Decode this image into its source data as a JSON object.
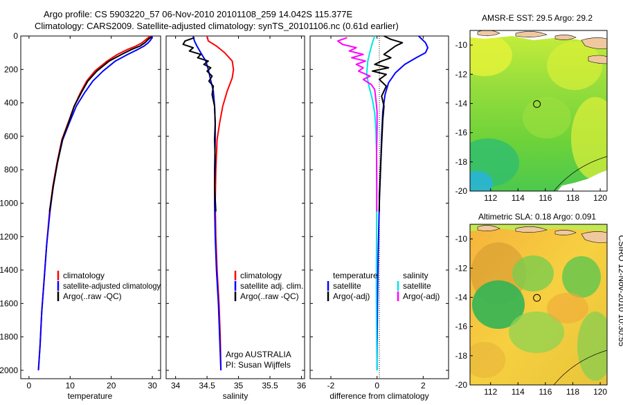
{
  "header": {
    "line1": "Argo profile: CS 5903220_57 06-Nov-2010 20101108_259 14.042S 115.377E",
    "line2": "Climatology: CARS2009. Satellite-adjusted climatology: synTS_20101106.nc (0.61d earlier)"
  },
  "side_text": "CSIRO 12-Nov-2010 10:30:55",
  "colors": {
    "red": "#ff0000",
    "blue": "#0000ff",
    "black": "#000000",
    "cyan": "#00e5e5",
    "magenta": "#ff00ff"
  },
  "chart_data": [
    {
      "type": "line",
      "title": "",
      "xlabel": "temperature",
      "ylabel": "",
      "xlim": [
        -2,
        32
      ],
      "ylim": [
        0,
        2050
      ],
      "y_inverted": true,
      "xticks": [
        0,
        10,
        20,
        30
      ],
      "yticks": [
        0,
        200,
        400,
        600,
        800,
        1000,
        1200,
        1400,
        1600,
        1800,
        2000
      ],
      "legend": [
        "climatology",
        "satellite-adjusted climatology",
        "Argo(..raw -QC)"
      ],
      "legend_position": "bottom-right",
      "series": [
        {
          "name": "climatology",
          "color": "#ff0000",
          "points": [
            [
              29.5,
              0
            ],
            [
              28.5,
              20
            ],
            [
              27.5,
              40
            ],
            [
              26,
              60
            ],
            [
              24,
              80
            ],
            [
              21.5,
              110
            ],
            [
              19,
              150
            ],
            [
              16,
              210
            ],
            [
              14,
              270
            ],
            [
              12.5,
              340
            ],
            [
              11,
              420
            ],
            [
              9.5,
              520
            ],
            [
              8,
              620
            ],
            [
              6.8,
              760
            ],
            [
              5.8,
              900
            ],
            [
              5,
              1050
            ],
            [
              4.3,
              1250
            ],
            [
              3.7,
              1450
            ],
            [
              3.1,
              1650
            ],
            [
              2.7,
              1850
            ],
            [
              2.3,
              2000
            ]
          ]
        },
        {
          "name": "satellite-adjusted climatology",
          "color": "#0000ff",
          "points": [
            [
              30,
              0
            ],
            [
              29.7,
              20
            ],
            [
              29,
              40
            ],
            [
              28,
              60
            ],
            [
              26.5,
              80
            ],
            [
              24,
              110
            ],
            [
              21,
              150
            ],
            [
              18,
              210
            ],
            [
              15.5,
              270
            ],
            [
              13.5,
              340
            ],
            [
              11.5,
              420
            ],
            [
              9.8,
              520
            ],
            [
              8.2,
              620
            ],
            [
              6.9,
              760
            ],
            [
              5.9,
              900
            ],
            [
              5.1,
              1050
            ],
            [
              4.3,
              1250
            ],
            [
              3.7,
              1450
            ],
            [
              3.1,
              1650
            ],
            [
              2.7,
              1850
            ],
            [
              2.3,
              2000
            ]
          ]
        },
        {
          "name": "Argo(..raw -QC)",
          "color": "#000000",
          "points": [
            [
              29.8,
              5
            ],
            [
              29,
              20
            ],
            [
              28.2,
              40
            ],
            [
              27,
              60
            ],
            [
              25,
              80
            ],
            [
              22.5,
              110
            ],
            [
              19.5,
              150
            ],
            [
              16.5,
              210
            ],
            [
              14.3,
              270
            ],
            [
              12.7,
              340
            ],
            [
              11,
              420
            ],
            [
              9.6,
              520
            ],
            [
              8.1,
              620
            ],
            [
              6.9,
              760
            ],
            [
              5.9,
              900
            ],
            [
              5,
              1050
            ]
          ]
        }
      ]
    },
    {
      "type": "line",
      "title": "",
      "xlabel": "salinity",
      "ylabel": "",
      "xlim": [
        33.85,
        36.05
      ],
      "ylim": [
        0,
        2050
      ],
      "y_inverted": true,
      "xticks": [
        34,
        34.5,
        35,
        35.5,
        36
      ],
      "legend": [
        "climatology",
        "satellite adj. clim.",
        "Argo(..raw -QC)"
      ],
      "legend_position": "bottom-right",
      "annotations": [
        "Argo AUSTRALIA",
        "PI: Susan Wijffels"
      ],
      "series": [
        {
          "name": "climatology",
          "color": "#ff0000",
          "points": [
            [
              34.5,
              0
            ],
            [
              34.52,
              30
            ],
            [
              34.65,
              60
            ],
            [
              34.78,
              100
            ],
            [
              34.9,
              150
            ],
            [
              34.92,
              200
            ],
            [
              34.9,
              250
            ],
            [
              34.82,
              330
            ],
            [
              34.75,
              420
            ],
            [
              34.7,
              520
            ],
            [
              34.66,
              620
            ],
            [
              34.64,
              800
            ],
            [
              34.63,
              1000
            ],
            [
              34.64,
              1200
            ],
            [
              34.66,
              1400
            ],
            [
              34.69,
              1600
            ],
            [
              34.71,
              1800
            ],
            [
              34.72,
              2000
            ]
          ]
        },
        {
          "name": "satellite adj. clim.",
          "color": "#0000ff",
          "points": [
            [
              34.28,
              0
            ],
            [
              34.3,
              30
            ],
            [
              34.34,
              60
            ],
            [
              34.4,
              100
            ],
            [
              34.48,
              150
            ],
            [
              34.52,
              200
            ],
            [
              34.55,
              250
            ],
            [
              34.6,
              330
            ],
            [
              34.62,
              420
            ],
            [
              34.63,
              520
            ],
            [
              34.63,
              620
            ],
            [
              34.62,
              800
            ],
            [
              34.62,
              1000
            ],
            [
              34.63,
              1200
            ],
            [
              34.65,
              1400
            ],
            [
              34.68,
              1600
            ],
            [
              34.7,
              1800
            ],
            [
              34.72,
              2000
            ]
          ]
        },
        {
          "name": "Argo(..raw -QC)",
          "color": "#000000",
          "points": [
            [
              34.3,
              10
            ],
            [
              34.15,
              30
            ],
            [
              34.12,
              50
            ],
            [
              34.28,
              70
            ],
            [
              34.22,
              90
            ],
            [
              34.4,
              110
            ],
            [
              34.35,
              130
            ],
            [
              34.52,
              150
            ],
            [
              34.45,
              170
            ],
            [
              34.56,
              190
            ],
            [
              34.5,
              210
            ],
            [
              34.58,
              240
            ],
            [
              34.53,
              270
            ],
            [
              34.6,
              300
            ],
            [
              34.58,
              350
            ],
            [
              34.62,
              420
            ],
            [
              34.63,
              520
            ],
            [
              34.62,
              620
            ],
            [
              34.63,
              750
            ],
            [
              34.62,
              900
            ],
            [
              34.64,
              1050
            ]
          ]
        }
      ]
    },
    {
      "type": "line",
      "title": "",
      "xlabel": "difference from climatology",
      "ylabel": "",
      "xlim": [
        -2.9,
        3.1
      ],
      "ylim": [
        0,
        2050
      ],
      "y_inverted": true,
      "xticks": [
        -2,
        0,
        2
      ],
      "legend": [
        "temperature",
        "satellite",
        "Argo(-adj)",
        "salinity",
        "satellite",
        "Argo(-adj)"
      ],
      "legend_position": "bottom",
      "series": [
        {
          "name": "temperature satellite",
          "color": "#0000ff",
          "points": [
            [
              1.8,
              0
            ],
            [
              2.1,
              40
            ],
            [
              2.2,
              70
            ],
            [
              2.1,
              100
            ],
            [
              1.7,
              130
            ],
            [
              1.2,
              170
            ],
            [
              0.8,
              220
            ],
            [
              0.5,
              280
            ],
            [
              0.35,
              350
            ],
            [
              0.25,
              450
            ],
            [
              0.2,
              600
            ],
            [
              0.15,
              800
            ],
            [
              0.1,
              1000
            ],
            [
              0.05,
              1300
            ],
            [
              0.02,
              1600
            ],
            [
              0,
              1850
            ],
            [
              0,
              2000
            ]
          ]
        },
        {
          "name": "temperature Argo(-adj)",
          "color": "#000000",
          "points": [
            [
              0.3,
              0
            ],
            [
              0.6,
              20
            ],
            [
              1.1,
              40
            ],
            [
              0.8,
              60
            ],
            [
              0.6,
              80
            ],
            [
              0.3,
              110
            ],
            [
              0.6,
              130
            ],
            [
              0.2,
              150
            ],
            [
              -0.1,
              170
            ],
            [
              0.5,
              190
            ],
            [
              -0.2,
              210
            ],
            [
              0.4,
              230
            ],
            [
              0.1,
              260
            ],
            [
              0.4,
              300
            ],
            [
              0.2,
              360
            ],
            [
              0.3,
              420
            ],
            [
              0.25,
              500
            ],
            [
              0.2,
              650
            ],
            [
              0.15,
              800
            ],
            [
              0.1,
              950
            ],
            [
              0.1,
              1050
            ]
          ]
        },
        {
          "name": "salinity satellite",
          "color": "#00e5e5",
          "points": [
            [
              -0.1,
              0
            ],
            [
              -0.2,
              40
            ],
            [
              -0.3,
              90
            ],
            [
              -0.4,
              150
            ],
            [
              -0.45,
              230
            ],
            [
              -0.35,
              300
            ],
            [
              -0.2,
              380
            ],
            [
              -0.1,
              460
            ],
            [
              -0.05,
              560
            ],
            [
              -0.02,
              700
            ],
            [
              -0.01,
              900
            ],
            [
              -0.02,
              1200
            ],
            [
              -0.03,
              1500
            ],
            [
              -0.02,
              1800
            ],
            [
              0,
              2000
            ]
          ]
        },
        {
          "name": "salinity Argo(-adj)",
          "color": "#ff00ff",
          "points": [
            [
              -1.3,
              10
            ],
            [
              -1.7,
              30
            ],
            [
              -1.5,
              50
            ],
            [
              -0.9,
              70
            ],
            [
              -1.2,
              90
            ],
            [
              -0.6,
              110
            ],
            [
              -1.1,
              130
            ],
            [
              -0.5,
              150
            ],
            [
              -0.9,
              170
            ],
            [
              -0.6,
              190
            ],
            [
              -0.8,
              210
            ],
            [
              -0.3,
              240
            ],
            [
              -0.6,
              260
            ],
            [
              -0.25,
              290
            ],
            [
              -0.1,
              320
            ],
            [
              -0.05,
              380
            ],
            [
              0,
              450
            ],
            [
              0,
              550
            ],
            [
              -0.02,
              700
            ],
            [
              -0.01,
              900
            ],
            [
              -0.01,
              1050
            ]
          ]
        }
      ]
    }
  ],
  "maps": {
    "sst": {
      "title": "AMSR-E SST: 29.5 Argo: 29.2",
      "xticks": [
        "112",
        "114",
        "116",
        "118",
        "120"
      ],
      "yticks": [
        "-10",
        "-12",
        "-14",
        "-16",
        "-18",
        "-20"
      ],
      "float_position": [
        115.38,
        -14.04
      ],
      "lon_range": [
        110.5,
        120.5
      ],
      "lat_range": [
        -20,
        -9
      ]
    },
    "sla": {
      "title": "Altimetric SLA: 0.18 Argo: 0.091",
      "xticks": [
        "112",
        "114",
        "116",
        "118",
        "120"
      ],
      "yticks": [
        "-10",
        "-12",
        "-14",
        "-16",
        "-18",
        "-20"
      ],
      "float_position": [
        115.38,
        -14.04
      ],
      "lon_range": [
        110.5,
        120.5
      ],
      "lat_range": [
        -20,
        -9
      ]
    }
  }
}
